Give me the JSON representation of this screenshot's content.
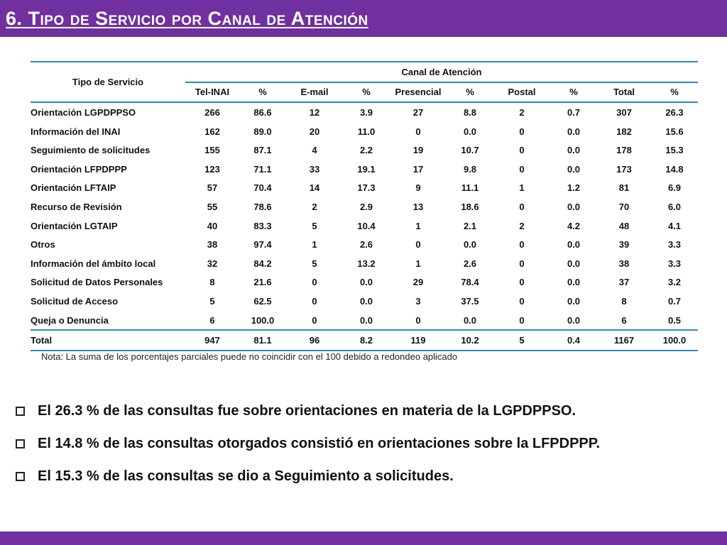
{
  "title": "6. Tipo de Servicio por Canal de Atención",
  "table": {
    "tipo_header": "Tipo de Servicio",
    "canal_header": "Canal de Atención",
    "columns": [
      "Tel-INAI",
      "%",
      "E-mail",
      "%",
      "Presencial",
      "%",
      "Postal",
      "%",
      "Total",
      "%"
    ],
    "rows": [
      {
        "name": "Orientación LGPDPPSO",
        "values": [
          "266",
          "86.6",
          "12",
          "3.9",
          "27",
          "8.8",
          "2",
          "0.7",
          "307",
          "26.3"
        ]
      },
      {
        "name": "Información del INAI",
        "values": [
          "162",
          "89.0",
          "20",
          "11.0",
          "0",
          "0.0",
          "0",
          "0.0",
          "182",
          "15.6"
        ]
      },
      {
        "name": "Seguimiento de solicitudes",
        "values": [
          "155",
          "87.1",
          "4",
          "2.2",
          "19",
          "10.7",
          "0",
          "0.0",
          "178",
          "15.3"
        ]
      },
      {
        "name": "Orientación LFPDPPP",
        "values": [
          "123",
          "71.1",
          "33",
          "19.1",
          "17",
          "9.8",
          "0",
          "0.0",
          "173",
          "14.8"
        ]
      },
      {
        "name": "Orientación LFTAIP",
        "values": [
          "57",
          "70.4",
          "14",
          "17.3",
          "9",
          "11.1",
          "1",
          "1.2",
          "81",
          "6.9"
        ]
      },
      {
        "name": "Recurso de Revisión",
        "values": [
          "55",
          "78.6",
          "2",
          "2.9",
          "13",
          "18.6",
          "0",
          "0.0",
          "70",
          "6.0"
        ]
      },
      {
        "name": "Orientación LGTAIP",
        "values": [
          "40",
          "83.3",
          "5",
          "10.4",
          "1",
          "2.1",
          "2",
          "4.2",
          "48",
          "4.1"
        ]
      },
      {
        "name": "Otros",
        "values": [
          "38",
          "97.4",
          "1",
          "2.6",
          "0",
          "0.0",
          "0",
          "0.0",
          "39",
          "3.3"
        ]
      },
      {
        "name": "Información del ámbito local",
        "values": [
          "32",
          "84.2",
          "5",
          "13.2",
          "1",
          "2.6",
          "0",
          "0.0",
          "38",
          "3.3"
        ]
      },
      {
        "name": "Solicitud de Datos Personales",
        "values": [
          "8",
          "21.6",
          "0",
          "0.0",
          "29",
          "78.4",
          "0",
          "0.0",
          "37",
          "3.2"
        ]
      },
      {
        "name": "Solicitud de Acceso",
        "values": [
          "5",
          "62.5",
          "0",
          "0.0",
          "3",
          "37.5",
          "0",
          "0.0",
          "8",
          "0.7"
        ]
      },
      {
        "name": "Queja o Denuncia",
        "values": [
          "6",
          "100.0",
          "0",
          "0.0",
          "0",
          "0.0",
          "0",
          "0.0",
          "6",
          "0.5"
        ]
      }
    ],
    "total": {
      "name": "Total",
      "values": [
        "947",
        "81.1",
        "96",
        "8.2",
        "119",
        "10.2",
        "5",
        "0.4",
        "1167",
        "100.0"
      ]
    }
  },
  "note": "Nota: La suma de los porcentajes parciales puede no coincidir con el 100 debido a redondeo aplicado",
  "bullets": [
    "El 26.3 % de las consultas fue sobre orientaciones en materia de la LGPDPPSO.",
    "El 14.8 % de las consultas otorgados consistió en orientaciones sobre la LFPDPPP.",
    "El 15.3 % de las consultas se dio a Seguimiento a solicitudes."
  ],
  "colors": {
    "title_bar": "#7030a0",
    "table_rule": "#2e86c1"
  }
}
